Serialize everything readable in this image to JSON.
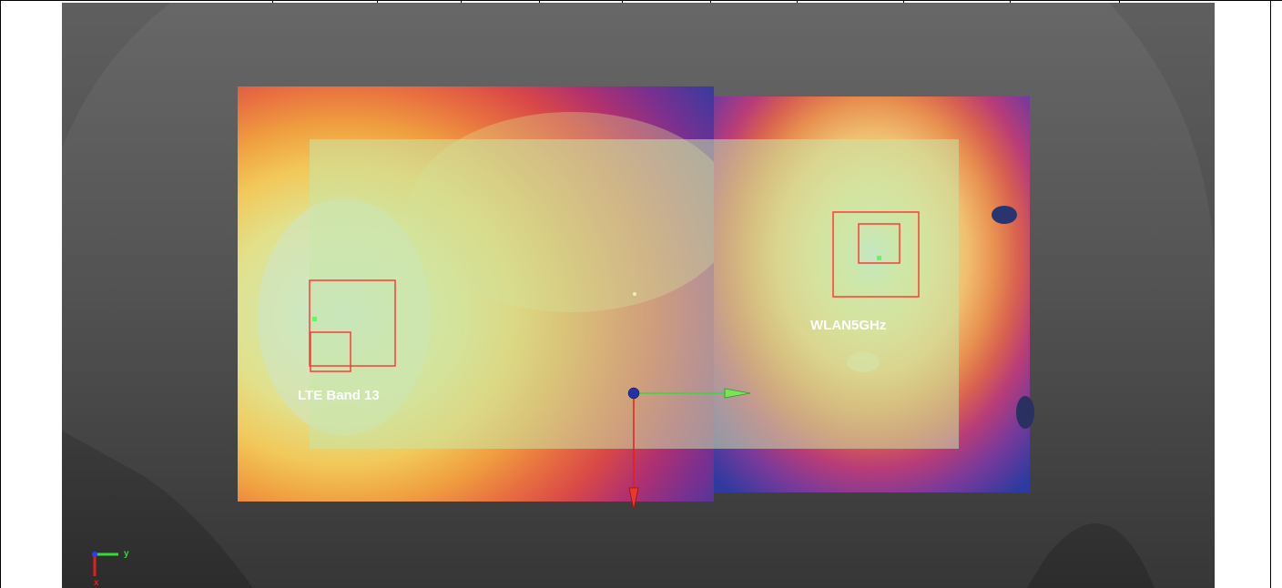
{
  "scene": {
    "antennas": [
      {
        "name": "LTE Band 13",
        "color": "#ff3b3b"
      },
      {
        "name": "WLAN5GHz",
        "color": "#ff3b3b"
      }
    ],
    "triad": {
      "y_label": "y",
      "x_label": "x",
      "y_color": "#33dd33",
      "x_color": "#e02020",
      "z_color": "#2a3cff"
    },
    "colors": {
      "background_top": "#5f5f5f",
      "background_bottom": "#2c2c2c",
      "device_overlay": "#c8e6a8",
      "axis_y": "#33dd33",
      "axis_x": "#e02020",
      "origin": "#2233aa"
    }
  }
}
